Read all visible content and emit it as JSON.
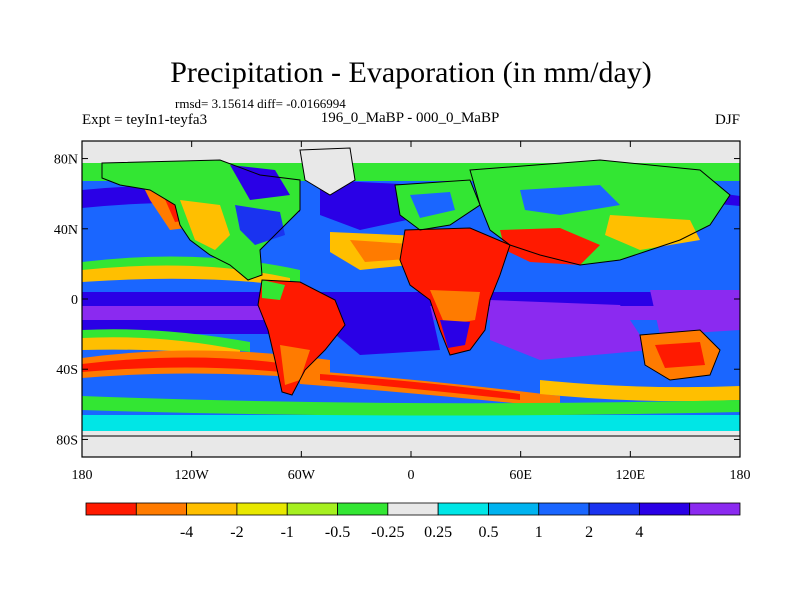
{
  "title": "Precipitation - Evaporation (in mm/day)",
  "stats": "rmsd= 3.15614 diff= -0.0166994",
  "expt": "Expt = teyIn1-teyfa3",
  "subtitle": "196_0_MaBP - 000_0_MaBP",
  "season": "DJF",
  "axes": {
    "x_ticks": [
      "180",
      "120W",
      "60W",
      "0",
      "60E",
      "120E",
      "180"
    ],
    "y_ticks": [
      "80N",
      "40N",
      "0",
      "40S",
      "80S"
    ]
  },
  "colorbar": {
    "colors": [
      "#ff1a00",
      "#ff7b00",
      "#ffbf00",
      "#e8e800",
      "#a6f020",
      "#33e633",
      "#e8e8e8",
      "#00e6e6",
      "#00b3f0",
      "#1a66ff",
      "#1a33f0",
      "#2a00e6",
      "#8b2af0"
    ],
    "labels": [
      "-4",
      "-2",
      "-1",
      "-0.5",
      "-0.25",
      "0.25",
      "0.5",
      "1",
      "2",
      "4"
    ]
  }
}
